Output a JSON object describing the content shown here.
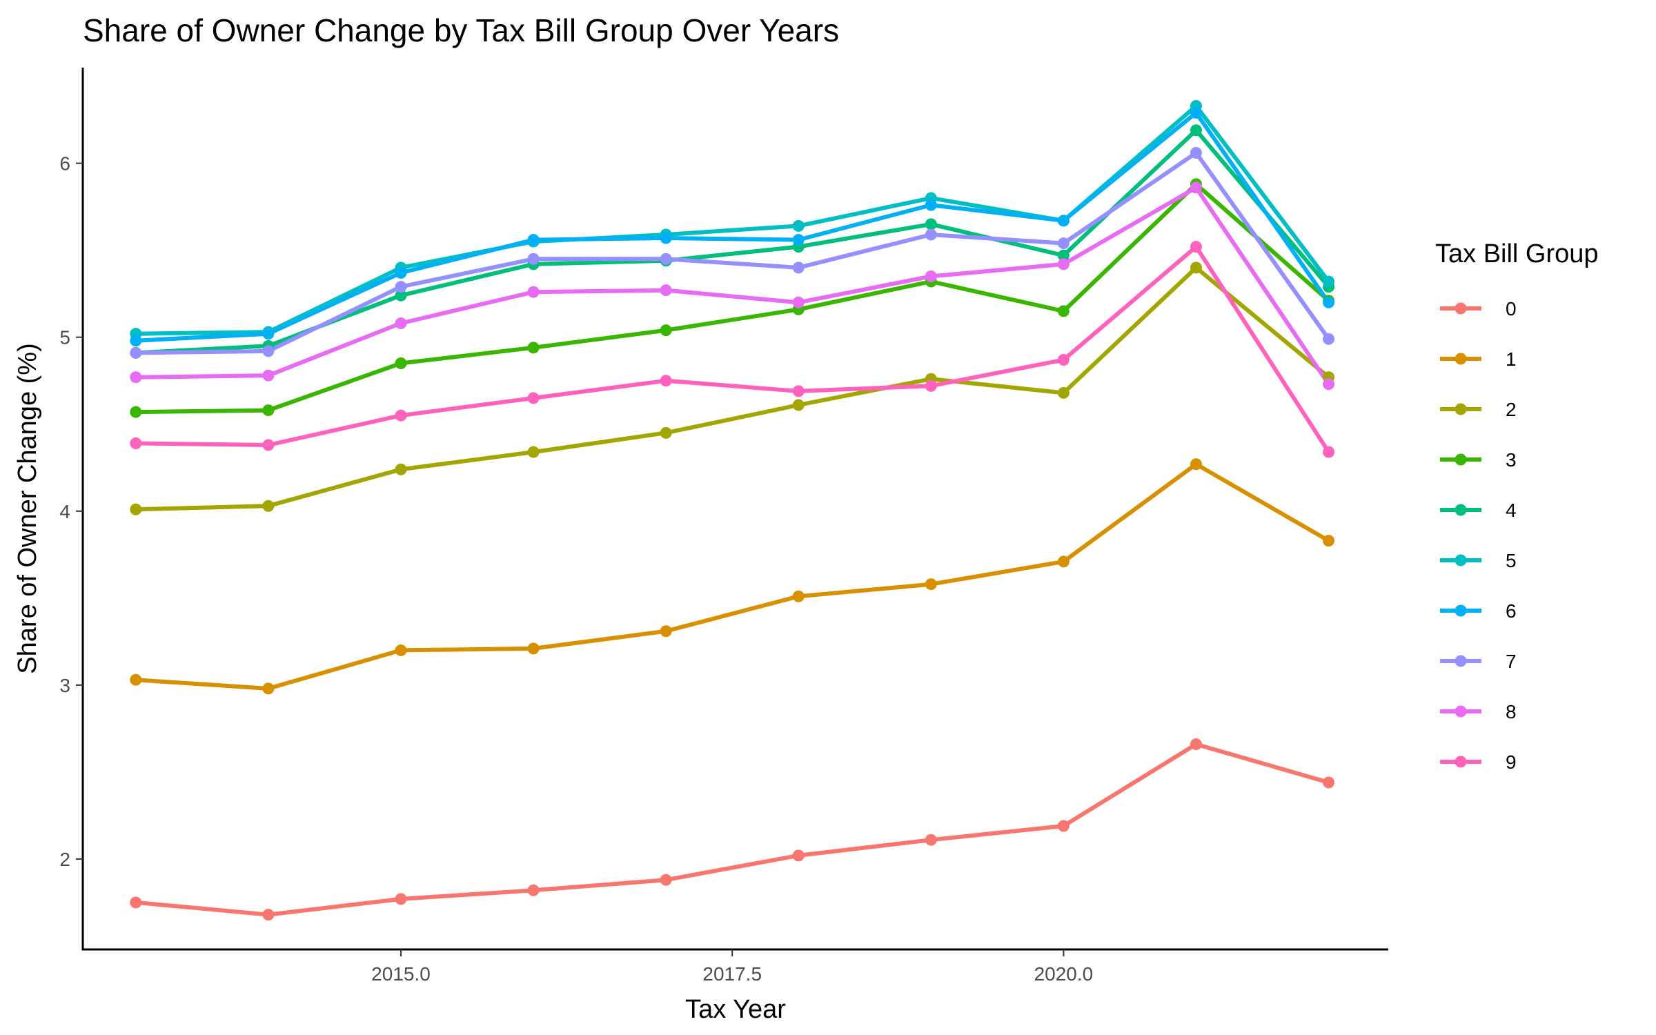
{
  "chart_data": {
    "type": "line",
    "title": "Share of Owner Change by Tax Bill Group Over Years",
    "xlabel": "Tax Year",
    "ylabel": "Share of Owner Change (%)",
    "xlim": [
      2012.6,
      2022.45
    ],
    "ylim": [
      1.48,
      6.55
    ],
    "xticks": [
      2015,
      2017.5,
      2020
    ],
    "xtick_labels": [
      "2015.0",
      "2017.5",
      "2020.0"
    ],
    "yticks": [
      2,
      3,
      4,
      5,
      6
    ],
    "ytick_labels": [
      "2",
      "3",
      "4",
      "5",
      "6"
    ],
    "grid": false,
    "legend": {
      "title": "Tax Bill Group",
      "position": "right"
    },
    "x": [
      2013,
      2014,
      2015,
      2016,
      2017,
      2018,
      2019,
      2020,
      2021,
      2022
    ],
    "series": [
      {
        "name": "0",
        "color": "#F8766D",
        "values": [
          1.75,
          1.68,
          1.77,
          1.82,
          1.88,
          2.02,
          2.11,
          2.19,
          2.66,
          2.44
        ]
      },
      {
        "name": "1",
        "color": "#D89000",
        "values": [
          3.03,
          2.98,
          3.2,
          3.21,
          3.31,
          3.51,
          3.58,
          3.71,
          4.27,
          3.83
        ]
      },
      {
        "name": "2",
        "color": "#A3A500",
        "values": [
          4.01,
          4.03,
          4.24,
          4.34,
          4.45,
          4.61,
          4.76,
          4.68,
          5.4,
          4.77
        ]
      },
      {
        "name": "3",
        "color": "#39B600",
        "values": [
          4.57,
          4.58,
          4.85,
          4.94,
          5.04,
          5.16,
          5.32,
          5.15,
          5.88,
          5.21
        ]
      },
      {
        "name": "4",
        "color": "#00BF7D",
        "values": [
          4.91,
          4.95,
          5.24,
          5.42,
          5.44,
          5.52,
          5.65,
          5.47,
          6.19,
          5.29
        ]
      },
      {
        "name": "5",
        "color": "#00BFC4",
        "values": [
          5.02,
          5.03,
          5.4,
          5.55,
          5.59,
          5.64,
          5.8,
          5.67,
          6.33,
          5.32
        ]
      },
      {
        "name": "6",
        "color": "#00B0F6",
        "values": [
          4.98,
          5.02,
          5.37,
          5.56,
          5.57,
          5.56,
          5.76,
          5.67,
          6.29,
          5.2
        ]
      },
      {
        "name": "7",
        "color": "#9590FF",
        "values": [
          4.91,
          4.92,
          5.29,
          5.45,
          5.45,
          5.4,
          5.59,
          5.54,
          6.06,
          4.99
        ]
      },
      {
        "name": "8",
        "color": "#E76BF3",
        "values": [
          4.77,
          4.78,
          5.08,
          5.26,
          5.27,
          5.2,
          5.35,
          5.42,
          5.86,
          4.73
        ]
      },
      {
        "name": "9",
        "color": "#FF62BC",
        "values": [
          4.39,
          4.38,
          4.55,
          4.65,
          4.75,
          4.69,
          4.72,
          4.87,
          5.52,
          4.34
        ]
      }
    ]
  }
}
